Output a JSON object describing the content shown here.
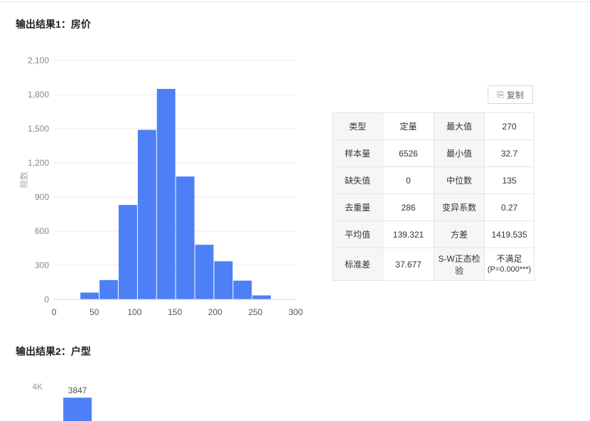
{
  "section1": {
    "title": "输出结果1：房价"
  },
  "section2": {
    "title": "输出结果2：户型"
  },
  "copy_button": {
    "label": "复制",
    "icon": "copy-icon"
  },
  "stats_table": {
    "rows": [
      [
        {
          "label": "类型",
          "value": "定量"
        },
        {
          "label": "最大值",
          "value": "270"
        }
      ],
      [
        {
          "label": "样本量",
          "value": "6526"
        },
        {
          "label": "最小值",
          "value": "32.7"
        }
      ],
      [
        {
          "label": "缺失值",
          "value": "0"
        },
        {
          "label": "中位数",
          "value": "135"
        }
      ],
      [
        {
          "label": "去重量",
          "value": "286"
        },
        {
          "label": "变异系数",
          "value": "0.27"
        }
      ],
      [
        {
          "label": "平均值",
          "value": "139.321"
        },
        {
          "label": "方差",
          "value": "1419.535"
        }
      ],
      [
        {
          "label": "标准差",
          "value": "37.677"
        },
        {
          "label": "S-W正态检验",
          "value": "不满足",
          "value2": "(P=0.000***)"
        }
      ]
    ]
  },
  "colors": {
    "bar": "#4d80f6",
    "grid": "#ebebeb",
    "axis_text": "#888888"
  },
  "chart_data": [
    {
      "type": "bar",
      "subtype": "histogram",
      "ylabel": "频数",
      "xlabel": "",
      "xlim": [
        0,
        300
      ],
      "ylim": [
        0,
        2100
      ],
      "xticks": [
        "0",
        "50",
        "100",
        "150",
        "200",
        "250",
        "300"
      ],
      "yticks": [
        "0",
        "300",
        "600",
        "900",
        "1,200",
        "1,500",
        "1,800",
        "2,100"
      ],
      "bins": [
        {
          "x0": 32.7,
          "x1": 56.5,
          "count": 60
        },
        {
          "x0": 56.5,
          "x1": 80.2,
          "count": 170
        },
        {
          "x0": 80.2,
          "x1": 104.0,
          "count": 830
        },
        {
          "x0": 104.0,
          "x1": 127.7,
          "count": 1490
        },
        {
          "x0": 127.7,
          "x1": 151.4,
          "count": 1850
        },
        {
          "x0": 151.4,
          "x1": 175.2,
          "count": 1080
        },
        {
          "x0": 175.2,
          "x1": 198.9,
          "count": 480
        },
        {
          "x0": 198.9,
          "x1": 222.6,
          "count": 335
        },
        {
          "x0": 222.6,
          "x1": 246.3,
          "count": 165
        },
        {
          "x0": 246.3,
          "x1": 270.0,
          "count": 35
        }
      ],
      "grid": true
    },
    {
      "type": "bar",
      "yticks": [
        "4K"
      ],
      "data_labels": [
        "3847"
      ],
      "values": [
        3847
      ],
      "ylim": [
        0,
        4000
      ]
    }
  ]
}
